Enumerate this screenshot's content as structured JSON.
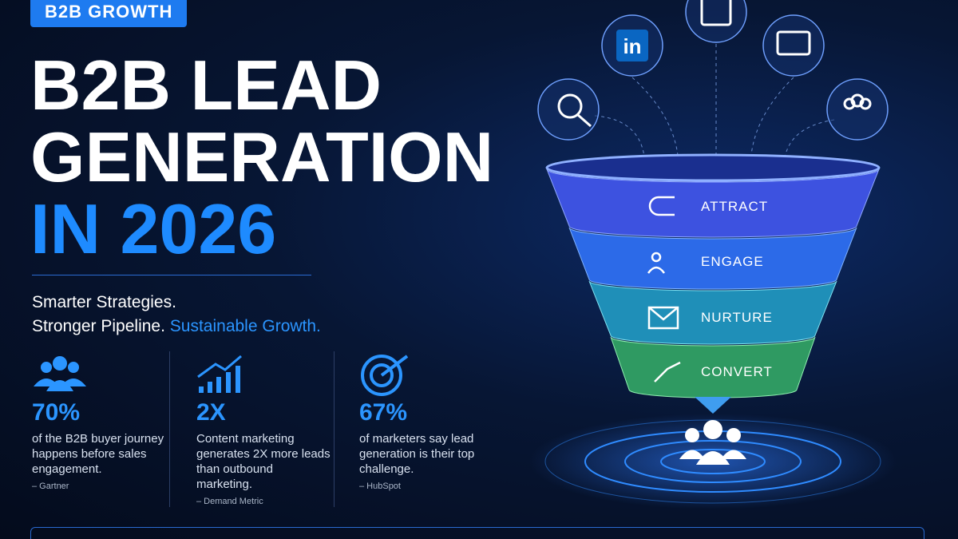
{
  "badge": "B2B GROWTH",
  "title": {
    "line1": "B2B LEAD",
    "line2": "GENERATION",
    "line3": "IN 2026"
  },
  "tagline": {
    "line1": "Smarter Strategies.",
    "line2": "Stronger Pipeline.",
    "highlight": "Sustainable Growth."
  },
  "stats": [
    {
      "value": "70%",
      "text": "of the B2B buyer journey happens before sales engagement.",
      "source": "– Gartner"
    },
    {
      "value": "2X",
      "text": "Content marketing generates 2X more leads than outbound marketing.",
      "source": "– Demand Metric"
    },
    {
      "value": "67%",
      "text": "of marketers say lead generation is their top challenge.",
      "source": "– HubSpot"
    }
  ],
  "icons": {
    "linkedin": "in"
  },
  "funnel": {
    "stages": [
      "ATTRACT",
      "ENGAGE",
      "NURTURE",
      "CONVERT"
    ]
  }
}
